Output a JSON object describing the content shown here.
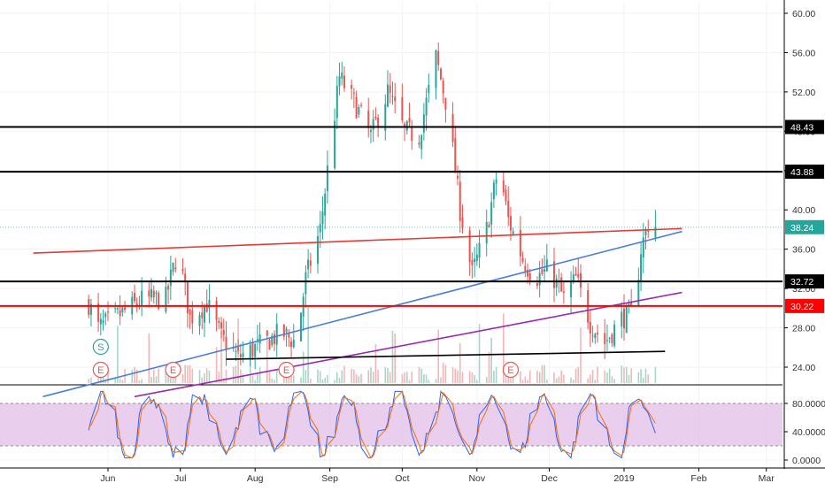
{
  "chart_data": [
    {
      "type": "candlestick",
      "title": "",
      "ylim": [
        22,
        62
      ],
      "price_ticks": [
        "60.00",
        "56.00",
        "52.00",
        "48.00",
        "44.00",
        "40.00",
        "36.00",
        "32.00",
        "28.00",
        "24.00"
      ],
      "price_tick_values": [
        60,
        56,
        52,
        48,
        44,
        40,
        36,
        32,
        28,
        24
      ],
      "x_ticks": [
        "Jun",
        "Jul",
        "Aug",
        "Sep",
        "Oct",
        "Nov",
        "Dec",
        "2019",
        "Feb",
        "Mar"
      ],
      "x_tick_dates": [
        "2018-06-01",
        "2018-07-01",
        "2018-08-01",
        "2018-09-01",
        "2018-10-01",
        "2018-11-01",
        "2018-12-01",
        "2019-01-01",
        "2019-02-01",
        "2019-03-01"
      ],
      "grid": true,
      "last_price": {
        "label": "38.24",
        "value": 38.24,
        "color": "#26a69a"
      },
      "horizontal_levels": [
        {
          "label": "48.43",
          "value": 48.43,
          "color": "#000000"
        },
        {
          "label": "43.88",
          "value": 43.88,
          "color": "#000000"
        },
        {
          "label": "32.72",
          "value": 32.72,
          "color": "#000000"
        },
        {
          "label": "30.22",
          "value": 30.22,
          "color": "#ff0000"
        }
      ],
      "trendlines": [
        {
          "color": "#e53935",
          "from": [
            "2018-05-01",
            35.6
          ],
          "to": [
            "2019-01-25",
            38.1
          ]
        },
        {
          "color": "#4a7fd8",
          "from": [
            "2018-05-05",
            21.0
          ],
          "to": [
            "2019-01-25",
            37.8
          ]
        },
        {
          "color": "#9c27b0",
          "from": [
            "2018-06-12",
            21.0
          ],
          "to": [
            "2019-01-25",
            31.6
          ]
        },
        {
          "color": "#000000",
          "from": [
            "2018-07-20",
            24.8
          ],
          "to": [
            "2019-01-18",
            25.6
          ]
        }
      ],
      "ohlc_anchors": [
        [
          "2018-05-24",
          30.5
        ],
        [
          "2018-05-28",
          28.0
        ],
        [
          "2018-06-05",
          29.2
        ],
        [
          "2018-06-15",
          30.8
        ],
        [
          "2018-06-25",
          31.0
        ],
        [
          "2018-06-30",
          36.0
        ],
        [
          "2018-07-05",
          29.0
        ],
        [
          "2018-07-12",
          30.5
        ],
        [
          "2018-07-18",
          27.0
        ],
        [
          "2018-07-25",
          25.0
        ],
        [
          "2018-08-05",
          26.5
        ],
        [
          "2018-08-12",
          27.5
        ],
        [
          "2018-08-18",
          26.5
        ],
        [
          "2018-08-22",
          33.0
        ],
        [
          "2018-08-28",
          38.0
        ],
        [
          "2018-09-01",
          46.0
        ],
        [
          "2018-09-05",
          53.5
        ],
        [
          "2018-09-12",
          50.5
        ],
        [
          "2018-09-18",
          47.5
        ],
        [
          "2018-09-25",
          52.0
        ],
        [
          "2018-10-02",
          48.0
        ],
        [
          "2018-10-08",
          47.5
        ],
        [
          "2018-10-15",
          55.5
        ],
        [
          "2018-10-20",
          50.0
        ],
        [
          "2018-10-25",
          40.0
        ],
        [
          "2018-10-30",
          33.5
        ],
        [
          "2018-11-05",
          38.0
        ],
        [
          "2018-11-10",
          44.5
        ],
        [
          "2018-11-14",
          39.0
        ],
        [
          "2018-11-20",
          35.0
        ],
        [
          "2018-11-25",
          33.0
        ],
        [
          "2018-12-01",
          34.0
        ],
        [
          "2018-12-07",
          31.0
        ],
        [
          "2018-12-12",
          33.0
        ],
        [
          "2018-12-18",
          28.5
        ],
        [
          "2018-12-24",
          26.5
        ],
        [
          "2018-12-31",
          29.0
        ],
        [
          "2019-01-05",
          29.5
        ],
        [
          "2019-01-08",
          36.0
        ],
        [
          "2019-01-12",
          39.5
        ],
        [
          "2019-01-14",
          38.24
        ]
      ],
      "event_markers": [
        {
          "label": "S",
          "date": "2018-05-29",
          "color": "#26a69a"
        },
        {
          "label": "E",
          "date": "2018-05-29",
          "color": "#ef5350"
        },
        {
          "label": "E",
          "date": "2018-06-28",
          "color": "#ef5350"
        },
        {
          "label": "E",
          "date": "2018-08-14",
          "color": "#ef5350"
        },
        {
          "label": "E",
          "date": "2018-11-15",
          "color": "#ef5350"
        }
      ],
      "volume": {
        "visible": true,
        "up_color": "#26a69a",
        "down_color": "#ef5350"
      }
    },
    {
      "type": "line",
      "name": "stochastic_oscillator",
      "ylim": [
        0,
        100
      ],
      "y_ticks": [
        "80.0000",
        "40.0000",
        "0.0000"
      ],
      "y_tick_values": [
        80,
        40,
        0
      ],
      "band": {
        "upper": 80,
        "lower": 20,
        "color": "#9c27b0"
      },
      "series": [
        {
          "color": "#2962ff"
        },
        {
          "color": "#ff6d00"
        }
      ]
    }
  ]
}
